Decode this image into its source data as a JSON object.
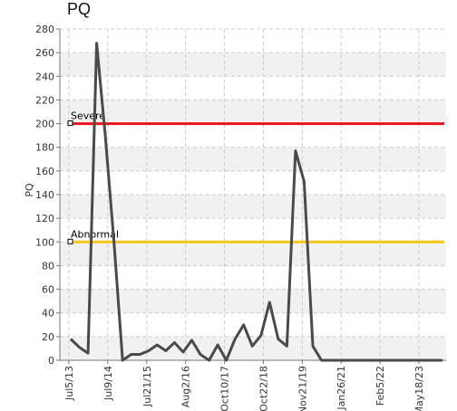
{
  "chart_data": {
    "type": "line",
    "title": "PQ",
    "ylabel": "PQ",
    "xlabel": "",
    "ylim": [
      0,
      280
    ],
    "y_ticks": [
      0,
      20,
      40,
      60,
      80,
      100,
      120,
      140,
      160,
      180,
      200,
      220,
      240,
      260,
      280
    ],
    "x_tick_labels": [
      "Jul5/13",
      "Jul9/14",
      "Jul21/15",
      "Aug2/16",
      "Oct10/17",
      "Oct22/18",
      "Nov21/19",
      "Jan26/21",
      "Feb5/22",
      "May18/23"
    ],
    "grid": true,
    "thresholds": [
      {
        "label": "Severe",
        "value": 200,
        "color": "#e8141b"
      },
      {
        "label": "Abnormal",
        "value": 100,
        "color": "#f5c518"
      }
    ],
    "series": [
      {
        "color": "#4a4a4a",
        "values": [
          18,
          11,
          6,
          268,
          190,
          100,
          0,
          5,
          5,
          8,
          13,
          8,
          15,
          7,
          17,
          5,
          0,
          13,
          0,
          18,
          30,
          12,
          21,
          49,
          18,
          12,
          177,
          151,
          12,
          0,
          0,
          0,
          0,
          0,
          0,
          0,
          0,
          0,
          0,
          0,
          0,
          0,
          0,
          0
        ]
      }
    ]
  }
}
